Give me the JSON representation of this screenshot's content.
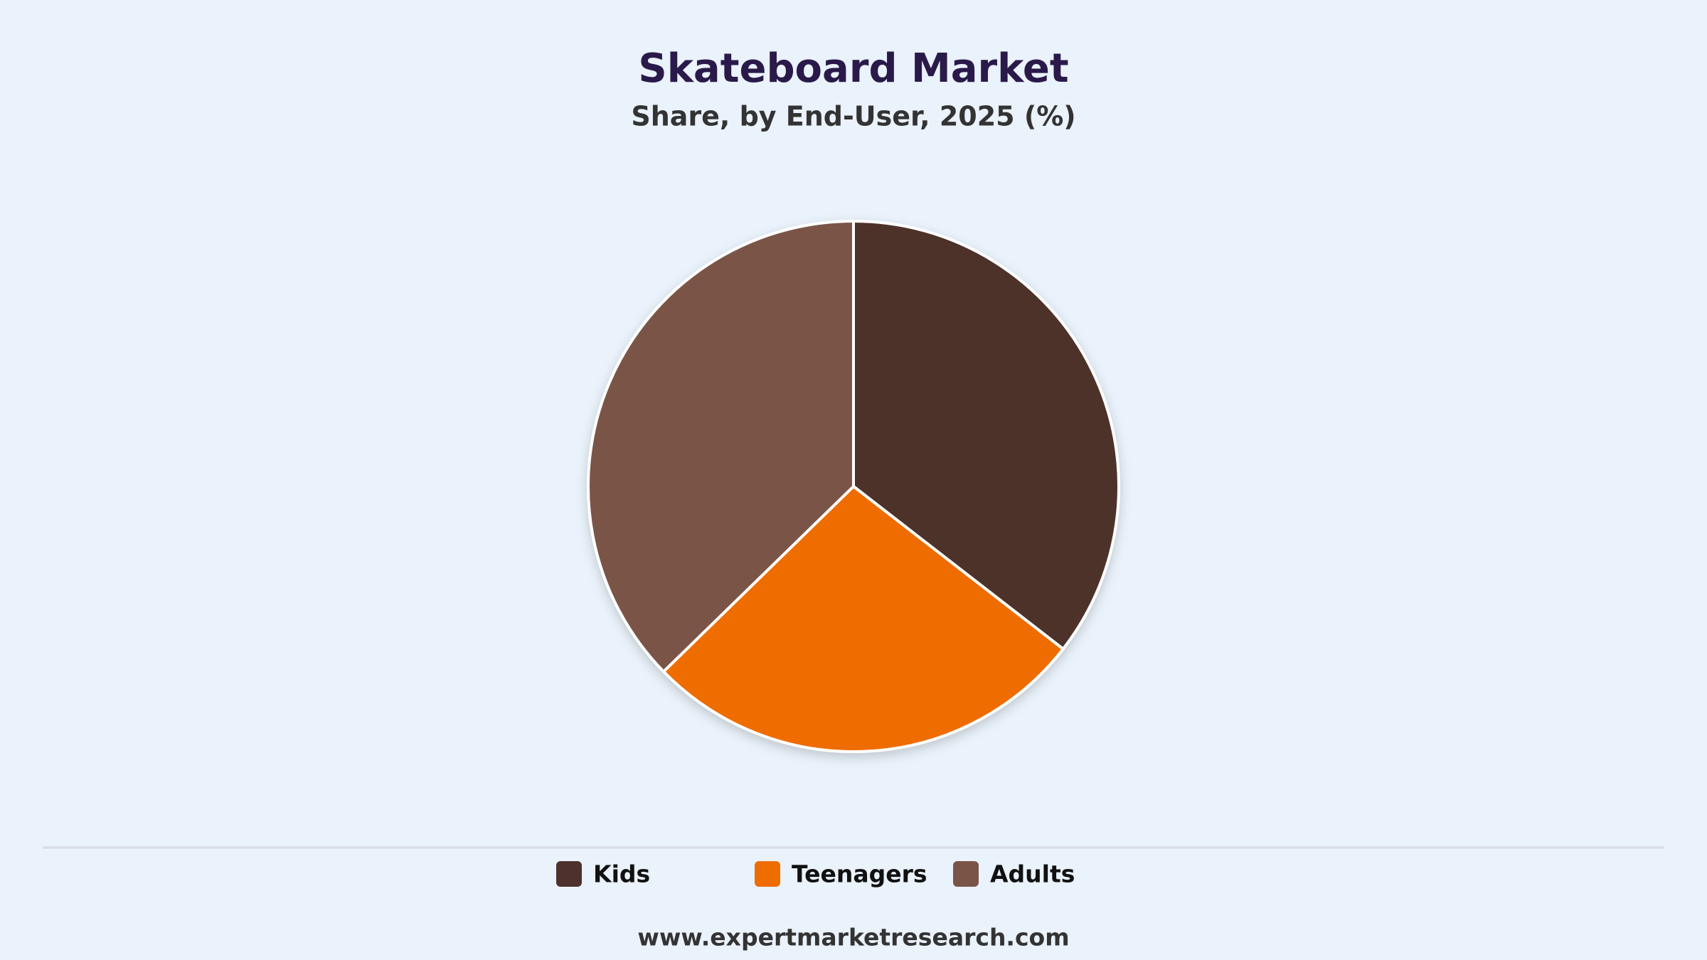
{
  "chart_data": {
    "type": "pie",
    "title": "Skateboard Market",
    "subtitle": "Share, by End-User, 2025 (%)",
    "categories": [
      "Kids",
      "Teenagers",
      "Adults"
    ],
    "values": [
      35.5,
      27.2,
      37.3
    ],
    "colors": [
      "#4e312c",
      "#ee6c00",
      "#7a5447"
    ],
    "legend": "bottom",
    "source": "www.expertmarketresearch.com"
  }
}
